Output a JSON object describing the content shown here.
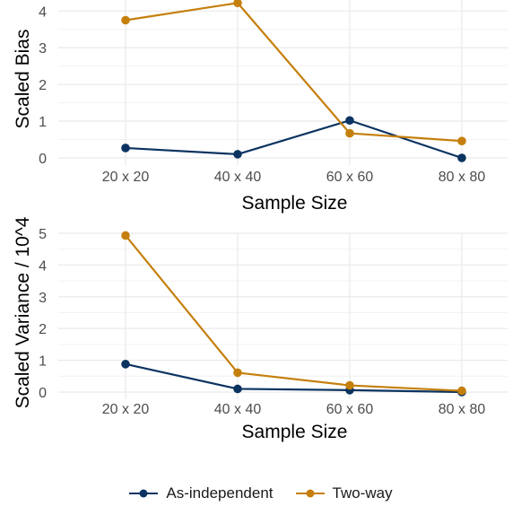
{
  "chart_data": [
    {
      "type": "line",
      "xlabel": "Sample Size",
      "ylabel": "Scaled Bias",
      "categories": [
        "20 x 20",
        "40 x 40",
        "60 x 60",
        "80 x 80"
      ],
      "ylim": [
        0,
        4.3
      ],
      "yticks": [
        "0",
        "1",
        "2",
        "3",
        "4"
      ],
      "grid": true,
      "series": [
        {
          "name": "As-independent",
          "color": "#0b3361",
          "values": [
            0.27,
            0.1,
            1.02,
            0.0
          ]
        },
        {
          "name": "Two-way",
          "color": "#c57f0c",
          "values": [
            3.75,
            4.22,
            0.67,
            0.46
          ]
        }
      ]
    },
    {
      "type": "line",
      "xlabel": "Sample Size",
      "ylabel": "Scaled Variance / 10^4",
      "categories": [
        "20 x 20",
        "40 x 40",
        "60 x 60",
        "80 x 80"
      ],
      "ylim": [
        0,
        5
      ],
      "yticks": [
        "0",
        "1",
        "2",
        "3",
        "4",
        "5"
      ],
      "grid": true,
      "series": [
        {
          "name": "As-independent",
          "color": "#0b3361",
          "values": [
            0.88,
            0.1,
            0.06,
            0.0
          ]
        },
        {
          "name": "Two-way",
          "color": "#c57f0c",
          "values": [
            4.93,
            0.61,
            0.21,
            0.04
          ]
        }
      ]
    }
  ],
  "legend": {
    "position": "bottom",
    "items": [
      {
        "label": "As-independent",
        "color": "#0b3361"
      },
      {
        "label": "Two-way",
        "color": "#c57f0c"
      }
    ]
  }
}
